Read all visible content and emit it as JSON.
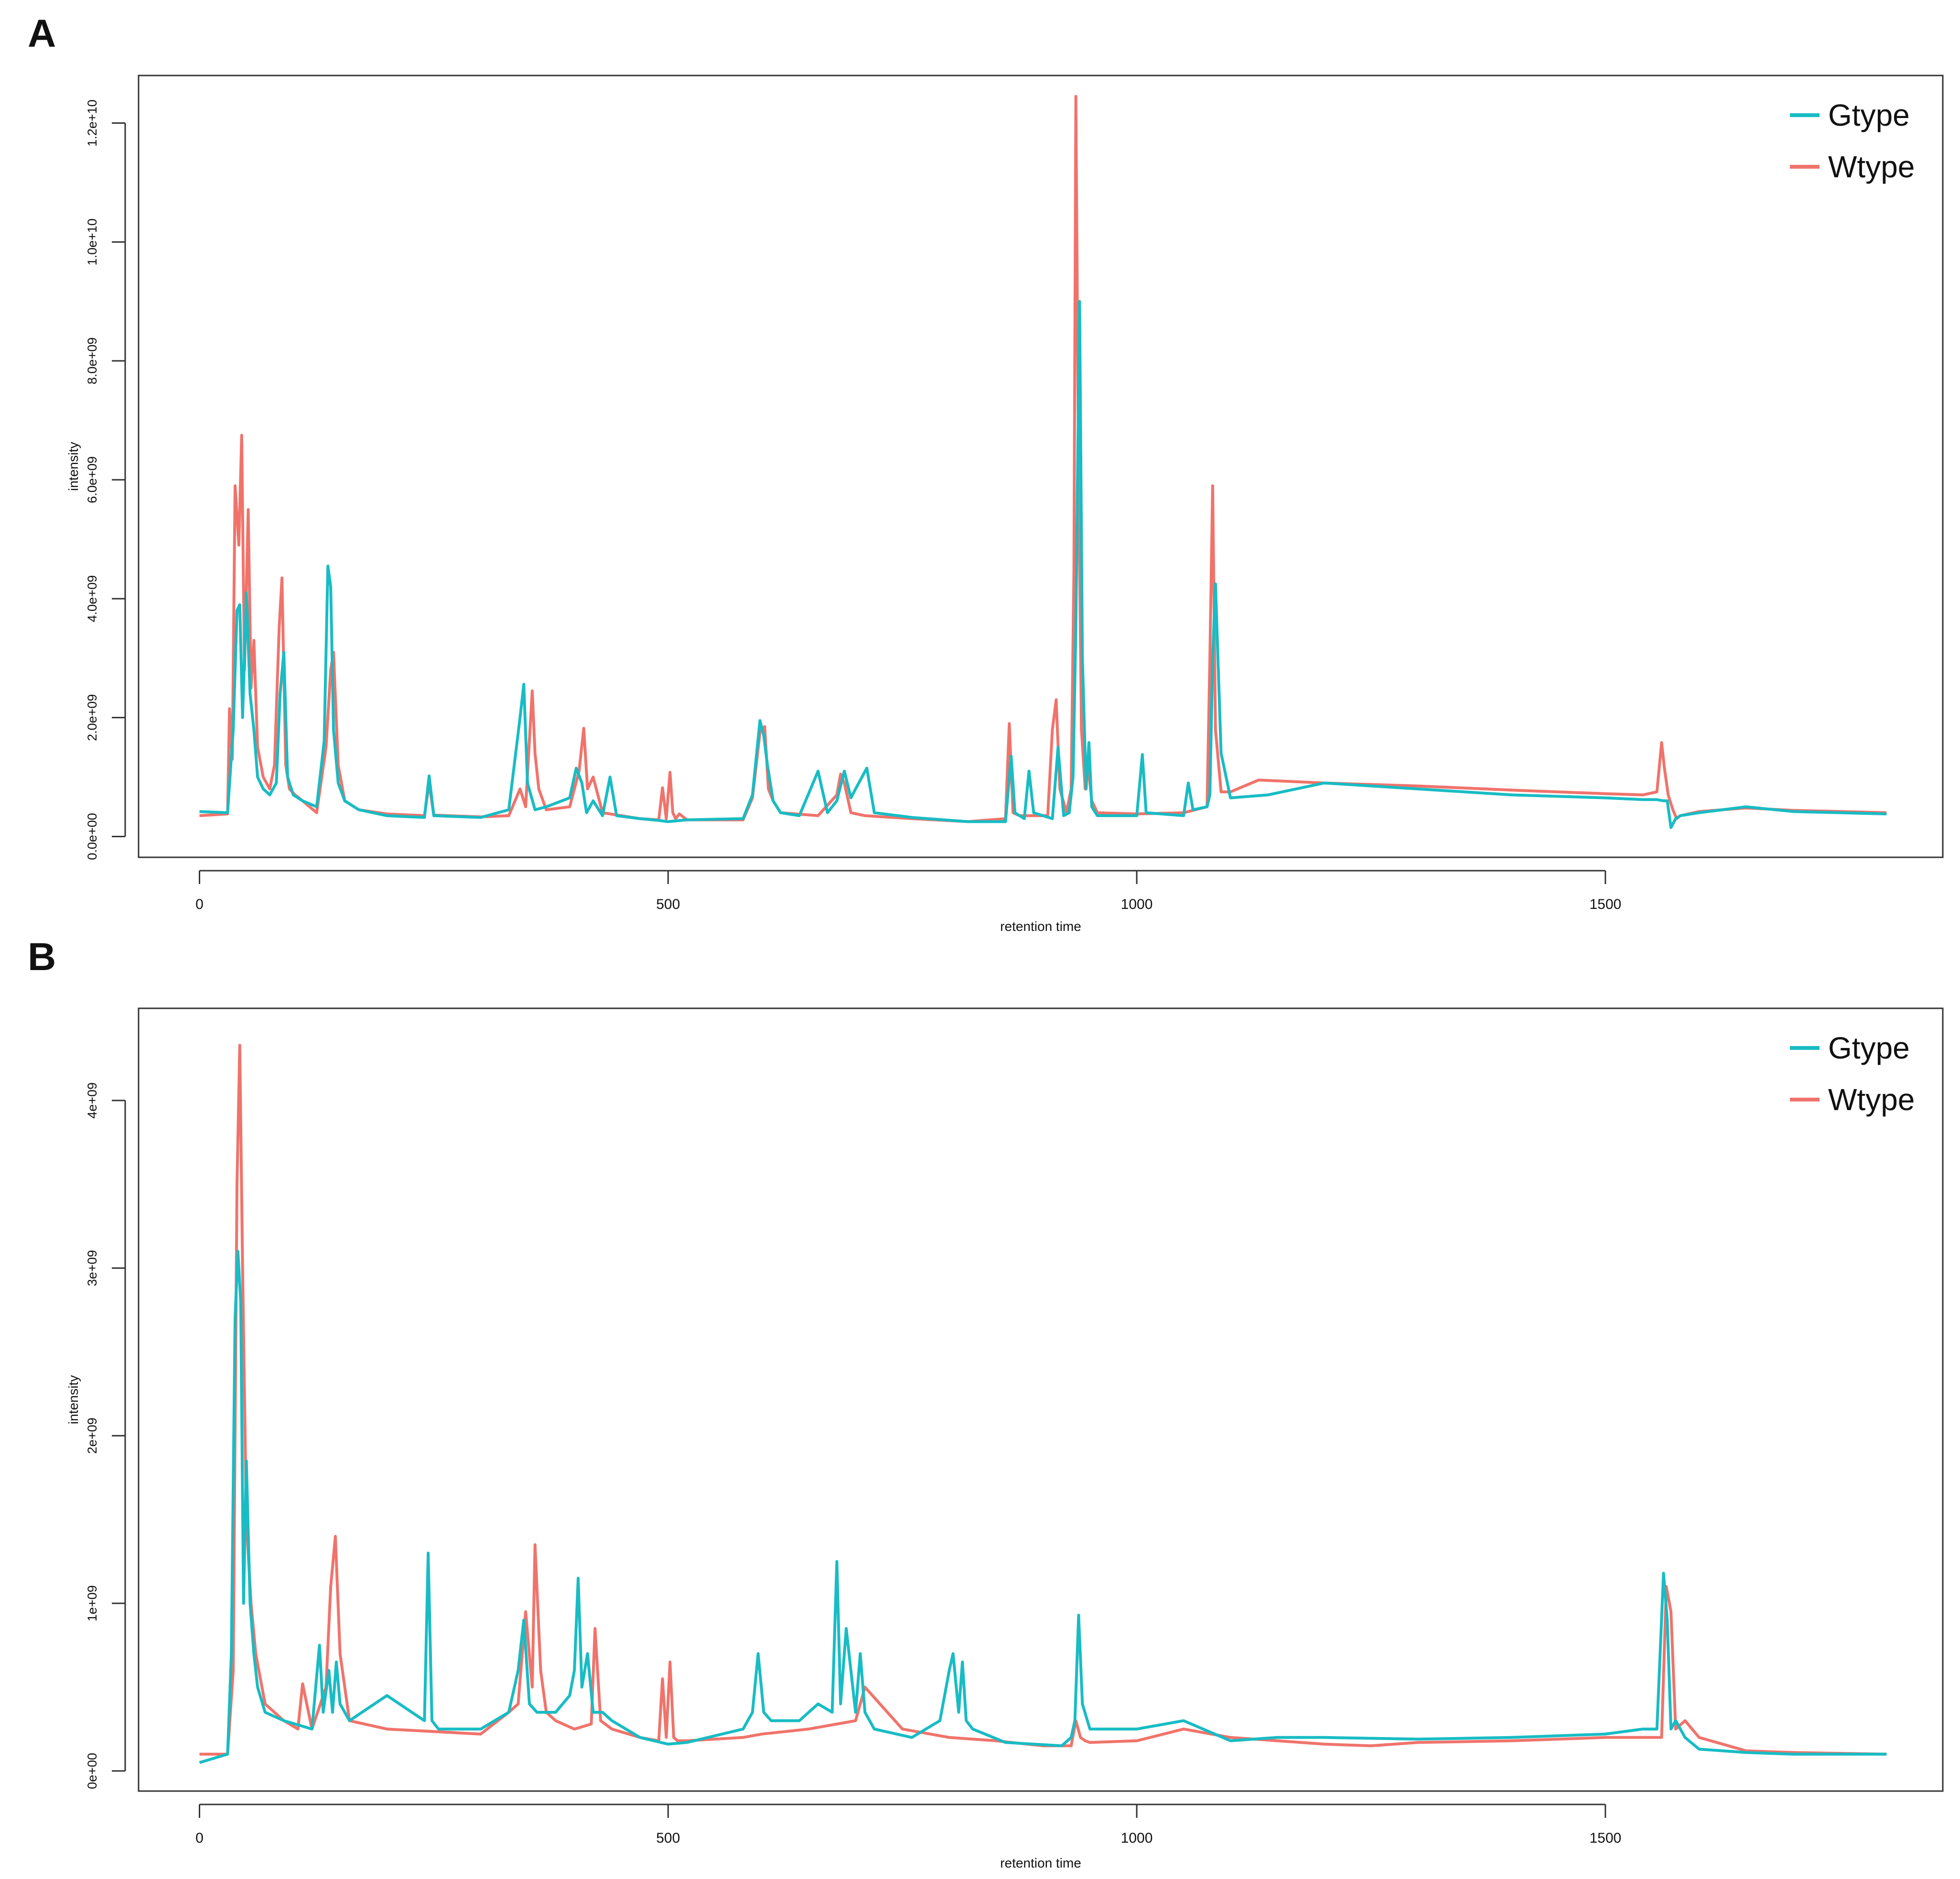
{
  "colors": {
    "gtype": "#18bcc4",
    "wtype": "#f0736b",
    "axis": "#333333"
  },
  "panels": [
    {
      "letter": "A"
    },
    {
      "letter": "B"
    }
  ],
  "chart_data": [
    {
      "type": "line",
      "panel": "A",
      "title": "",
      "xlabel": "retention time",
      "ylabel": "intensity",
      "xlim": [
        -65,
        1860
      ],
      "ylim": [
        -350000000,
        12800000000
      ],
      "xticks": [
        0,
        500,
        1000,
        1500
      ],
      "xtick_labels": [
        "0",
        "500",
        "1000",
        "1500"
      ],
      "yticks": [
        0,
        2000000000,
        4000000000,
        6000000000,
        8000000000,
        10000000000,
        12000000000
      ],
      "ytick_labels": [
        "0.0e+00",
        "2.0e+09",
        "4.0e+09",
        "6.0e+09",
        "8.0e+09",
        "1.0e+10",
        "1.2e+10"
      ],
      "legend": {
        "placement": "top-right",
        "entries": [
          "Gtype",
          "Wtype"
        ]
      },
      "series": [
        {
          "name": "Wtype",
          "color": "#f0736b",
          "x": [
            0,
            30,
            32,
            35,
            38,
            42,
            45,
            48,
            52,
            55,
            58,
            62,
            68,
            75,
            80,
            85,
            88,
            92,
            96,
            102,
            110,
            125,
            135,
            140,
            143,
            148,
            155,
            170,
            200,
            240,
            245,
            250,
            300,
            330,
            342,
            348,
            355,
            358,
            362,
            370,
            395,
            405,
            410,
            414,
            420,
            430,
            470,
            490,
            494,
            498,
            502,
            505,
            508,
            512,
            520,
            580,
            590,
            598,
            603,
            607,
            612,
            620,
            660,
            680,
            684,
            688,
            695,
            710,
            760,
            820,
            860,
            864,
            868,
            875,
            905,
            910,
            914,
            918,
            925,
            930,
            933,
            935,
            938,
            941,
            945,
            948,
            952,
            958,
            1000,
            1050,
            1075,
            1078,
            1081,
            1084,
            1090,
            1100,
            1130,
            1200,
            1300,
            1400,
            1500,
            1540,
            1555,
            1560,
            1563,
            1567,
            1572,
            1576,
            1580,
            1600,
            1650,
            1700,
            1800
          ],
          "y": [
            350000000,
            380000000,
            2150000000,
            1300000000,
            5900000000,
            4900000000,
            6750000000,
            2800000000,
            5500000000,
            2500000000,
            3300000000,
            1500000000,
            1000000000,
            800000000,
            1200000000,
            3500000000,
            4350000000,
            1200000000,
            800000000,
            700000000,
            600000000,
            400000000,
            1500000000,
            2800000000,
            3100000000,
            1200000000,
            600000000,
            450000000,
            380000000,
            350000000,
            900000000,
            360000000,
            330000000,
            350000000,
            800000000,
            500000000,
            2450000000,
            1400000000,
            800000000,
            450000000,
            500000000,
            1100000000,
            1820000000,
            800000000,
            1000000000,
            400000000,
            300000000,
            280000000,
            820000000,
            300000000,
            1080000000,
            400000000,
            300000000,
            380000000,
            280000000,
            280000000,
            650000000,
            1750000000,
            1850000000,
            800000000,
            600000000,
            400000000,
            350000000,
            700000000,
            1050000000,
            900000000,
            400000000,
            350000000,
            300000000,
            250000000,
            300000000,
            1900000000,
            400000000,
            350000000,
            350000000,
            1800000000,
            2300000000,
            800000000,
            400000000,
            800000000,
            4500000000,
            12450000000,
            6000000000,
            1800000000,
            800000000,
            1200000000,
            600000000,
            400000000,
            380000000,
            400000000,
            500000000,
            3000000000,
            5900000000,
            1800000000,
            750000000,
            750000000,
            950000000,
            900000000,
            850000000,
            780000000,
            720000000,
            700000000,
            750000000,
            1580000000,
            1150000000,
            700000000,
            450000000,
            300000000,
            350000000,
            420000000,
            480000000,
            440000000,
            400000000
          ]
        },
        {
          "name": "Gtype",
          "color": "#18bcc4",
          "x": [
            0,
            30,
            33,
            36,
            40,
            43,
            46,
            50,
            54,
            58,
            62,
            68,
            75,
            82,
            86,
            90,
            94,
            100,
            110,
            125,
            133,
            137,
            140,
            143,
            148,
            155,
            170,
            200,
            240,
            245,
            250,
            300,
            330,
            342,
            346,
            350,
            358,
            370,
            395,
            402,
            408,
            413,
            420,
            430,
            438,
            445,
            470,
            490,
            500,
            520,
            580,
            590,
            598,
            602,
            606,
            612,
            620,
            640,
            660,
            670,
            680,
            688,
            695,
            700,
            712,
            720,
            760,
            820,
            860,
            866,
            870,
            880,
            885,
            890,
            900,
            910,
            916,
            922,
            928,
            932,
            935,
            939,
            942,
            946,
            949,
            952,
            958,
            1000,
            1006,
            1010,
            1050,
            1055,
            1060,
            1075,
            1078,
            1081,
            1084,
            1090,
            1100,
            1140,
            1200,
            1300,
            1400,
            1500,
            1540,
            1555,
            1562,
            1566,
            1570,
            1575,
            1580,
            1600,
            1650,
            1700,
            1800
          ],
          "y": [
            420000000,
            400000000,
            1100000000,
            1800000000,
            3800000000,
            3900000000,
            2000000000,
            4100000000,
            2400000000,
            1800000000,
            1000000000,
            800000000,
            700000000,
            900000000,
            2400000000,
            3100000000,
            1000000000,
            700000000,
            600000000,
            500000000,
            1600000000,
            4550000000,
            4200000000,
            1800000000,
            900000000,
            600000000,
            450000000,
            350000000,
            320000000,
            1020000000,
            350000000,
            320000000,
            450000000,
            2000000000,
            2560000000,
            900000000,
            450000000,
            500000000,
            650000000,
            1150000000,
            900000000,
            400000000,
            600000000,
            350000000,
            1000000000,
            350000000,
            300000000,
            270000000,
            250000000,
            280000000,
            300000000,
            700000000,
            1950000000,
            1700000000,
            1200000000,
            600000000,
            400000000,
            350000000,
            1100000000,
            400000000,
            600000000,
            1100000000,
            650000000,
            800000000,
            1150000000,
            400000000,
            320000000,
            250000000,
            250000000,
            1350000000,
            400000000,
            300000000,
            1100000000,
            400000000,
            350000000,
            300000000,
            1500000000,
            350000000,
            400000000,
            1000000000,
            3500000000,
            9000000000,
            3000000000,
            800000000,
            1580000000,
            500000000,
            350000000,
            350000000,
            1380000000,
            400000000,
            350000000,
            900000000,
            450000000,
            500000000,
            700000000,
            3000000000,
            4250000000,
            1400000000,
            650000000,
            700000000,
            900000000,
            800000000,
            700000000,
            650000000,
            620000000,
            620000000,
            600000000,
            600000000,
            150000000,
            300000000,
            350000000,
            400000000,
            500000000,
            420000000,
            380000000
          ]
        }
      ]
    },
    {
      "type": "line",
      "panel": "B",
      "title": "",
      "xlabel": "retention time",
      "ylabel": "intensity",
      "xlim": [
        -65,
        1860
      ],
      "ylim": [
        -120000000,
        4550000000
      ],
      "xticks": [
        0,
        500,
        1000,
        1500
      ],
      "xtick_labels": [
        "0",
        "500",
        "1000",
        "1500"
      ],
      "yticks": [
        0,
        1000000000,
        2000000000,
        3000000000,
        4000000000
      ],
      "ytick_labels": [
        "0e+00",
        "1e+09",
        "2e+09",
        "3e+09",
        "4e+09"
      ],
      "legend": {
        "placement": "top-right",
        "entries": [
          "Gtype",
          "Wtype"
        ]
      },
      "series": [
        {
          "name": "Wtype",
          "color": "#f0736b",
          "x": [
            0,
            30,
            36,
            40,
            43,
            46,
            50,
            55,
            60,
            70,
            90,
            105,
            110,
            120,
            135,
            140,
            145,
            150,
            160,
            200,
            300,
            330,
            340,
            348,
            355,
            358,
            364,
            370,
            380,
            400,
            418,
            422,
            428,
            440,
            470,
            490,
            494,
            498,
            502,
            506,
            510,
            520,
            580,
            600,
            650,
            700,
            710,
            750,
            800,
            850,
            900,
            930,
            935,
            940,
            945,
            950,
            1000,
            1050,
            1100,
            1150,
            1200,
            1250,
            1300,
            1400,
            1500,
            1550,
            1560,
            1565,
            1570,
            1575,
            1585,
            1600,
            1650,
            1700,
            1800
          ],
          "y": [
            100000000,
            100000000,
            600000000,
            3500000000,
            4330000000,
            3000000000,
            1500000000,
            1000000000,
            700000000,
            400000000,
            300000000,
            250000000,
            520000000,
            250000000,
            500000000,
            1100000000,
            1400000000,
            700000000,
            300000000,
            250000000,
            220000000,
            350000000,
            400000000,
            950000000,
            500000000,
            1350000000,
            600000000,
            350000000,
            300000000,
            250000000,
            280000000,
            850000000,
            300000000,
            250000000,
            200000000,
            180000000,
            550000000,
            200000000,
            650000000,
            200000000,
            180000000,
            180000000,
            200000000,
            220000000,
            250000000,
            300000000,
            500000000,
            250000000,
            200000000,
            180000000,
            150000000,
            150000000,
            300000000,
            200000000,
            180000000,
            170000000,
            180000000,
            250000000,
            200000000,
            180000000,
            160000000,
            150000000,
            170000000,
            180000000,
            200000000,
            200000000,
            200000000,
            1100000000,
            950000000,
            250000000,
            300000000,
            200000000,
            120000000,
            110000000,
            100000000
          ]
        },
        {
          "name": "Gtype",
          "color": "#18bcc4",
          "x": [
            0,
            30,
            34,
            38,
            41,
            44,
            47,
            50,
            54,
            58,
            62,
            70,
            90,
            120,
            128,
            132,
            138,
            142,
            146,
            150,
            160,
            200,
            240,
            244,
            248,
            255,
            300,
            330,
            340,
            346,
            352,
            360,
            380,
            395,
            400,
            404,
            408,
            414,
            420,
            430,
            440,
            470,
            500,
            520,
            580,
            590,
            596,
            602,
            610,
            640,
            660,
            675,
            680,
            684,
            690,
            700,
            705,
            710,
            715,
            720,
            760,
            790,
            800,
            804,
            810,
            814,
            818,
            825,
            860,
            920,
            930,
            934,
            938,
            942,
            950,
            1000,
            1050,
            1100,
            1150,
            1200,
            1300,
            1400,
            1500,
            1540,
            1555,
            1562,
            1566,
            1570,
            1575,
            1585,
            1600,
            1650,
            1700,
            1800
          ],
          "y": [
            50000000,
            100000000,
            700000000,
            2700000000,
            3100000000,
            2800000000,
            1000000000,
            1850000000,
            1000000000,
            700000000,
            500000000,
            350000000,
            300000000,
            250000000,
            750000000,
            350000000,
            600000000,
            350000000,
            650000000,
            400000000,
            300000000,
            450000000,
            300000000,
            1300000000,
            300000000,
            250000000,
            250000000,
            350000000,
            600000000,
            900000000,
            400000000,
            350000000,
            350000000,
            450000000,
            600000000,
            1150000000,
            500000000,
            700000000,
            350000000,
            350000000,
            300000000,
            200000000,
            160000000,
            170000000,
            250000000,
            350000000,
            700000000,
            350000000,
            300000000,
            300000000,
            400000000,
            350000000,
            1250000000,
            400000000,
            850000000,
            350000000,
            700000000,
            350000000,
            300000000,
            250000000,
            200000000,
            300000000,
            600000000,
            700000000,
            350000000,
            650000000,
            300000000,
            250000000,
            170000000,
            150000000,
            200000000,
            300000000,
            930000000,
            400000000,
            250000000,
            250000000,
            300000000,
            180000000,
            200000000,
            200000000,
            190000000,
            200000000,
            220000000,
            250000000,
            250000000,
            1180000000,
            900000000,
            250000000,
            300000000,
            200000000,
            130000000,
            110000000,
            100000000,
            100000000
          ]
        }
      ]
    }
  ]
}
